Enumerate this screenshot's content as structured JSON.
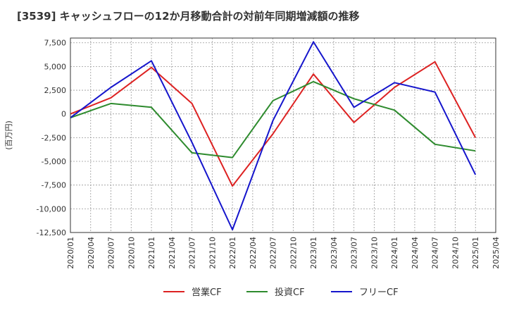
{
  "chart_data": {
    "type": "line",
    "title": "[3539]  キャッシュフローの12か月移動合計の対前年同期増減額の推移",
    "ylabel": "(百万円)",
    "xlabel": "",
    "ylim": [
      -12500,
      8000
    ],
    "yticks": [
      7500,
      5000,
      2500,
      0,
      -2500,
      -5000,
      -7500,
      -10000,
      -12500
    ],
    "ytick_labels": [
      "7,500",
      "5,000",
      "2,500",
      "0",
      "-2,500",
      "-5,000",
      "-7,500",
      "-10,000",
      "-12,500"
    ],
    "xticks": [
      "2020/01",
      "2020/04",
      "2020/07",
      "2020/10",
      "2021/01",
      "2021/04",
      "2021/07",
      "2021/10",
      "2022/01",
      "2022/04",
      "2022/07",
      "2022/10",
      "2023/01",
      "2023/04",
      "2023/07",
      "2023/10",
      "2024/01",
      "2024/04",
      "2024/07",
      "2024/10",
      "2025/01",
      "2025/04"
    ],
    "grid": true,
    "legend_position": "bottom",
    "series": [
      {
        "name": "営業CF",
        "color": "#dd2222",
        "points": [
          [
            "2020/01",
            0
          ],
          [
            "2020/07",
            1700
          ],
          [
            "2021/01",
            4900
          ],
          [
            "2021/07",
            1100
          ],
          [
            "2022/01",
            -7600
          ],
          [
            "2022/07",
            -2100
          ],
          [
            "2023/01",
            4200
          ],
          [
            "2023/07",
            -900
          ],
          [
            "2024/01",
            2800
          ],
          [
            "2024/07",
            5500
          ],
          [
            "2025/01",
            -2500
          ]
        ]
      },
      {
        "name": "投資CF",
        "color": "#2e8b2e",
        "points": [
          [
            "2020/01",
            -400
          ],
          [
            "2020/07",
            1100
          ],
          [
            "2021/01",
            700
          ],
          [
            "2021/07",
            -4100
          ],
          [
            "2022/01",
            -4600
          ],
          [
            "2022/07",
            1400
          ],
          [
            "2023/01",
            3400
          ],
          [
            "2023/07",
            1600
          ],
          [
            "2024/01",
            400
          ],
          [
            "2024/07",
            -3200
          ],
          [
            "2025/01",
            -3900
          ]
        ]
      },
      {
        "name": "フリーCF",
        "color": "#1515cc",
        "points": [
          [
            "2020/01",
            -400
          ],
          [
            "2020/07",
            2800
          ],
          [
            "2021/01",
            5600
          ],
          [
            "2021/07",
            -3000
          ],
          [
            "2022/01",
            -12200
          ],
          [
            "2022/07",
            -700
          ],
          [
            "2023/01",
            7600
          ],
          [
            "2023/07",
            700
          ],
          [
            "2024/01",
            3300
          ],
          [
            "2024/07",
            2300
          ],
          [
            "2025/01",
            -6400
          ]
        ]
      }
    ]
  }
}
